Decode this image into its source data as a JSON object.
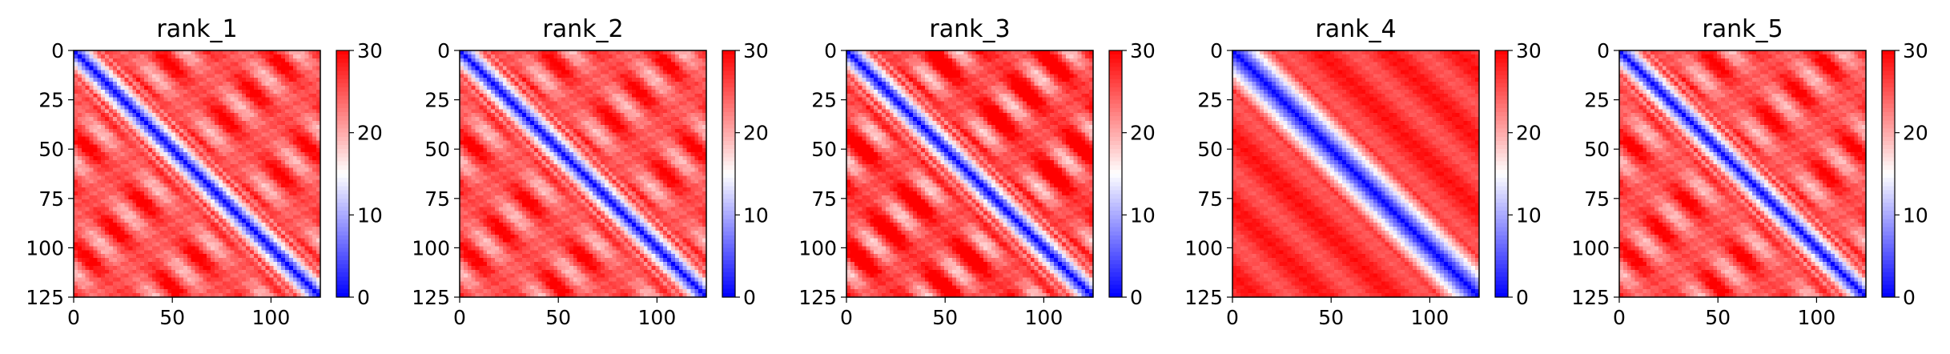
{
  "chart_data": [
    {
      "type": "heatmap",
      "title": "rank_1",
      "pattern": "tm",
      "size": 125,
      "xticks": [
        0,
        50,
        100
      ],
      "yticks": [
        0,
        25,
        50,
        75,
        100,
        125
      ],
      "colorbar": {
        "min": 0,
        "max": 30,
        "ticks": [
          0,
          10,
          20,
          30
        ]
      },
      "colormap": [
        "#0000ff",
        "#ffffff",
        "#ff0000"
      ]
    },
    {
      "type": "heatmap",
      "title": "rank_2",
      "pattern": "tm",
      "size": 125,
      "xticks": [
        0,
        50,
        100
      ],
      "yticks": [
        0,
        25,
        50,
        75,
        100,
        125
      ],
      "colorbar": {
        "min": 0,
        "max": 30,
        "ticks": [
          0,
          10,
          20,
          30
        ]
      },
      "colormap": [
        "#0000ff",
        "#ffffff",
        "#ff0000"
      ]
    },
    {
      "type": "heatmap",
      "title": "rank_3",
      "pattern": "tm_strong",
      "size": 125,
      "xticks": [
        0,
        50,
        100
      ],
      "yticks": [
        0,
        25,
        50,
        75,
        100,
        125
      ],
      "colorbar": {
        "min": 0,
        "max": 30,
        "ticks": [
          0,
          10,
          20,
          30
        ]
      },
      "colormap": [
        "#0000ff",
        "#ffffff",
        "#ff0000"
      ]
    },
    {
      "type": "heatmap",
      "title": "rank_4",
      "pattern": "extended",
      "size": 125,
      "xticks": [
        0,
        50,
        100
      ],
      "yticks": [
        0,
        25,
        50,
        75,
        100,
        125
      ],
      "colorbar": {
        "min": 0,
        "max": 30,
        "ticks": [
          0,
          10,
          20,
          30
        ]
      },
      "colormap": [
        "#0000ff",
        "#ffffff",
        "#ff0000"
      ]
    },
    {
      "type": "heatmap",
      "title": "rank_5",
      "pattern": "tm",
      "size": 125,
      "xticks": [
        0,
        50,
        100
      ],
      "yticks": [
        0,
        25,
        50,
        75,
        100,
        125
      ],
      "colorbar": {
        "min": 0,
        "max": 30,
        "ticks": [
          0,
          10,
          20,
          30
        ]
      },
      "colormap": [
        "#0000ff",
        "#ffffff",
        "#ff0000"
      ]
    }
  ]
}
